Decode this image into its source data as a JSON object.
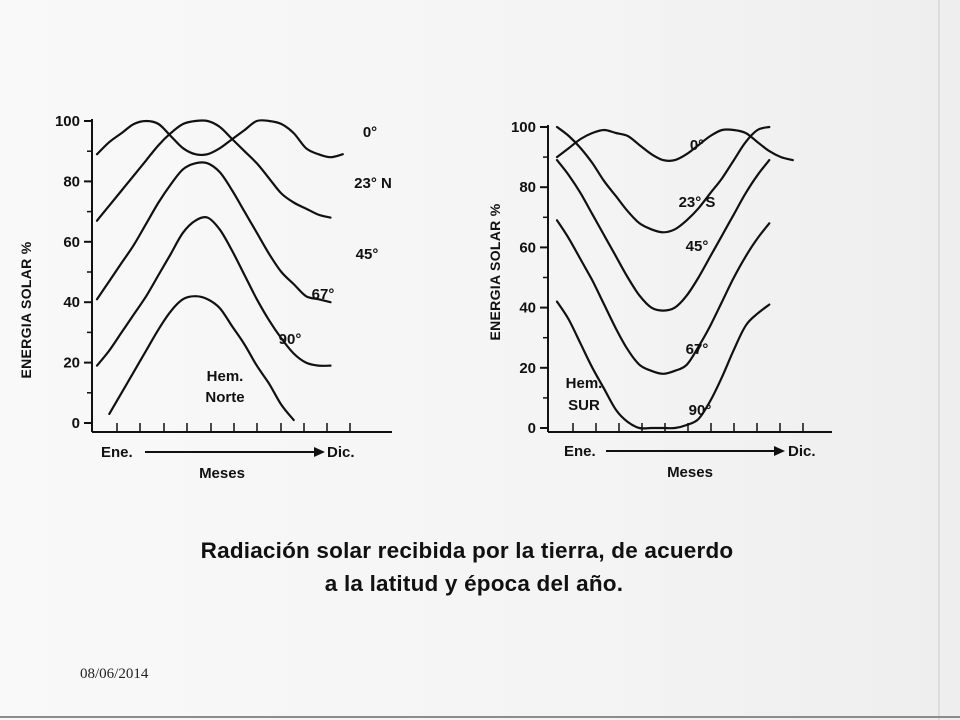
{
  "slide": {
    "caption_line1": "Radiación solar recibida por la tierra, de acuerdo",
    "caption_line2": "a la latitud y época del año.",
    "date": "08/06/2014"
  },
  "chart_data": [
    {
      "type": "line",
      "hemisphere_label": [
        "Hem.",
        "Norte"
      ],
      "ylabel": "ENERGIA SOLAR %",
      "xlabel": "Meses",
      "x_start_label": "Ene.",
      "x_end_label": "Dic.",
      "ylim": [
        0,
        100
      ],
      "y_ticks": [
        0,
        20,
        40,
        60,
        80,
        100
      ],
      "x": [
        1,
        1.5,
        2,
        2.5,
        3,
        3.5,
        4,
        4.5,
        5,
        5.5,
        6,
        6.5,
        7,
        7.5,
        8,
        8.5,
        9,
        9.5,
        10,
        10.5,
        11,
        11.5,
        12,
        12.5,
        13
      ],
      "series": [
        {
          "name": "0°",
          "values": [
            89,
            93,
            96,
            99,
            100,
            99,
            95,
            91,
            89,
            89,
            91,
            94,
            97,
            100,
            100,
            99,
            96,
            91,
            89,
            88,
            89,
            null,
            null,
            null,
            null
          ]
        },
        {
          "name": "23° N",
          "values": [
            67,
            72,
            77,
            82,
            87,
            92,
            96,
            99,
            100,
            100,
            98,
            94,
            90,
            86,
            81,
            76,
            73,
            71,
            69,
            68,
            null,
            null,
            null,
            null,
            null
          ]
        },
        {
          "name": "45°",
          "values": [
            41,
            47,
            53,
            59,
            66,
            73,
            79,
            84,
            86,
            86,
            83,
            77,
            70,
            63,
            56,
            50,
            46,
            42,
            41,
            40,
            null,
            null,
            null,
            null,
            null
          ]
        },
        {
          "name": "67°",
          "values": [
            19,
            24,
            30,
            36,
            42,
            49,
            56,
            63,
            67,
            68,
            64,
            57,
            49,
            41,
            34,
            28,
            23,
            20,
            19,
            19,
            null,
            null,
            null,
            null,
            null
          ]
        },
        {
          "name": "90°",
          "values": [
            null,
            3,
            10,
            17,
            24,
            31,
            37,
            41,
            42,
            41,
            38,
            32,
            26,
            19,
            13,
            6,
            1,
            null,
            null,
            null,
            null,
            null,
            null,
            null,
            null
          ]
        }
      ]
    },
    {
      "type": "line",
      "hemisphere_label": [
        "Hem.",
        "SUR"
      ],
      "ylabel": "ENERGIA SOLAR %",
      "xlabel": "Meses",
      "x_start_label": "Ene.",
      "x_end_label": "Dic.",
      "ylim": [
        0,
        100
      ],
      "y_ticks": [
        0,
        20,
        40,
        60,
        80,
        100
      ],
      "x": [
        1,
        1.5,
        2,
        2.5,
        3,
        3.5,
        4,
        4.5,
        5,
        5.5,
        6,
        6.5,
        7,
        7.5,
        8,
        8.5,
        9,
        9.5,
        10,
        10.5,
        11,
        11.5,
        12,
        12.5,
        13
      ],
      "series": [
        {
          "name": "0°",
          "values": [
            90,
            93,
            96,
            98,
            99,
            98,
            97,
            94,
            91,
            89,
            89,
            91,
            94,
            97,
            99,
            99,
            98,
            95,
            92,
            90,
            89,
            null,
            null,
            null,
            null
          ]
        },
        {
          "name": "23° S",
          "values": [
            100,
            97,
            93,
            88,
            82,
            77,
            72,
            68,
            66,
            65,
            66,
            69,
            73,
            78,
            83,
            89,
            95,
            99,
            100,
            null,
            null,
            null,
            null,
            null,
            null
          ]
        },
        {
          "name": "45°",
          "values": [
            89,
            84,
            78,
            71,
            64,
            57,
            50,
            44,
            40,
            39,
            40,
            44,
            50,
            57,
            64,
            71,
            78,
            84,
            89,
            null,
            null,
            null,
            null,
            null,
            null
          ]
        },
        {
          "name": "67°",
          "values": [
            69,
            63,
            56,
            49,
            41,
            33,
            26,
            21,
            19,
            18,
            19,
            21,
            27,
            34,
            42,
            50,
            57,
            63,
            68,
            null,
            null,
            null,
            null,
            null,
            null
          ]
        },
        {
          "name": "90°",
          "values": [
            42,
            36,
            28,
            20,
            13,
            6,
            2,
            0,
            0,
            0,
            0,
            1,
            3,
            9,
            17,
            26,
            34,
            38,
            41,
            null,
            null,
            null,
            null,
            null,
            null
          ]
        }
      ]
    }
  ]
}
